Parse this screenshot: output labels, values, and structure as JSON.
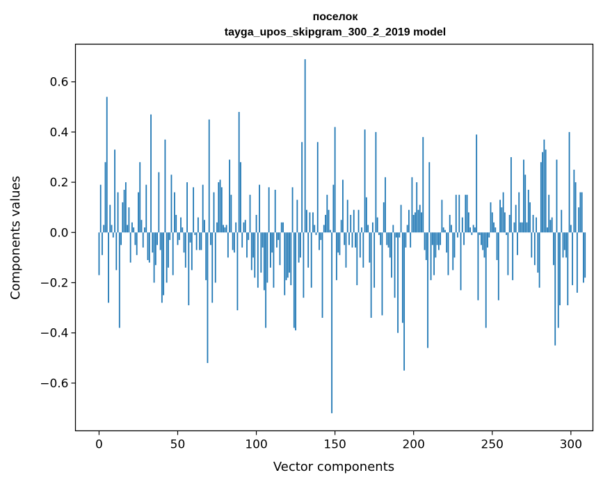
{
  "chart_data": {
    "type": "bar",
    "title": "поселок",
    "subtitle": "tayga_upos_skipgram_300_2_2019 model",
    "xlabel": "Vector components",
    "ylabel": "Components values",
    "xlim": [
      -15,
      314
    ],
    "ylim": [
      -0.79,
      0.75
    ],
    "xticks": [
      0,
      50,
      100,
      150,
      200,
      250,
      300
    ],
    "yticks": [
      -0.6,
      -0.4,
      -0.2,
      0.0,
      0.2,
      0.4,
      0.6
    ],
    "xtick_labels": [
      "0",
      "50",
      "100",
      "150",
      "200",
      "250",
      "300"
    ],
    "ytick_labels": [
      "−0.6",
      "−0.4",
      "−0.2",
      "0.0",
      "0.2",
      "0.4",
      "0.6"
    ],
    "bar_color": "#1f77b4",
    "grid": false,
    "values": [
      -0.17,
      0.19,
      -0.09,
      0.03,
      0.28,
      0.54,
      -0.28,
      0.11,
      0.03,
      -0.02,
      0.33,
      -0.15,
      0.16,
      -0.38,
      -0.05,
      0.12,
      0.17,
      0.2,
      0.03,
      0.1,
      -0.12,
      0.04,
      0.02,
      -0.05,
      -0.09,
      0.16,
      0.28,
      0.05,
      -0.06,
      0.02,
      0.19,
      -0.11,
      -0.12,
      0.47,
      -0.08,
      -0.2,
      -0.13,
      -0.05,
      0.24,
      -0.07,
      -0.28,
      -0.25,
      0.37,
      -0.2,
      -0.14,
      -0.03,
      0.23,
      -0.17,
      0.16,
      0.07,
      -0.05,
      -0.03,
      0.06,
      0.02,
      -0.08,
      -0.14,
      0.2,
      -0.29,
      -0.04,
      -0.15,
      0.18,
      -0.01,
      -0.07,
      0.06,
      -0.07,
      -0.07,
      0.19,
      0.05,
      -0.19,
      -0.52,
      0.45,
      -0.05,
      -0.28,
      0.16,
      -0.2,
      0.04,
      0.2,
      0.21,
      0.18,
      0.03,
      0.02,
      0.03,
      -0.1,
      0.29,
      0.15,
      -0.07,
      -0.08,
      0.04,
      -0.31,
      0.48,
      0.28,
      -0.06,
      0.04,
      0.05,
      -0.1,
      -0.03,
      0.15,
      -0.15,
      -0.1,
      -0.18,
      0.07,
      -0.22,
      0.19,
      -0.16,
      -0.06,
      -0.23,
      -0.38,
      -0.2,
      0.18,
      -0.14,
      -0.08,
      -0.22,
      0.17,
      -0.06,
      -0.03,
      -0.13,
      0.04,
      0.04,
      -0.25,
      -0.19,
      -0.18,
      -0.16,
      -0.21,
      0.18,
      -0.38,
      -0.39,
      0.13,
      -0.12,
      -0.1,
      0.36,
      -0.26,
      0.69,
      0.09,
      -0.14,
      0.08,
      -0.22,
      0.08,
      0.03,
      -0.01,
      0.36,
      -0.07,
      -0.03,
      -0.34,
      0.03,
      0.07,
      0.15,
      0.09,
      0.01,
      -0.72,
      0.19,
      0.42,
      -0.19,
      -0.08,
      -0.09,
      0.05,
      0.21,
      -0.05,
      -0.14,
      0.13,
      -0.05,
      0.07,
      -0.06,
      0.09,
      -0.06,
      -0.21,
      0.09,
      -0.1,
      0.02,
      -0.14,
      0.41,
      0.14,
      0.03,
      -0.12,
      -0.34,
      0.04,
      -0.22,
      0.4,
      0.06,
      -0.01,
      -0.05,
      -0.33,
      0.12,
      0.22,
      -0.05,
      -0.06,
      -0.1,
      -0.18,
      0.03,
      -0.26,
      -0.02,
      -0.4,
      -0.02,
      0.11,
      -0.36,
      -0.55,
      -0.06,
      0.03,
      0.09,
      -0.06,
      0.22,
      0.07,
      0.08,
      0.2,
      0.09,
      0.11,
      0.08,
      0.38,
      -0.07,
      -0.11,
      -0.46,
      0.28,
      -0.19,
      -0.05,
      -0.17,
      -0.1,
      -0.05,
      -0.07,
      -0.05,
      0.13,
      0.02,
      0.01,
      -0.08,
      -0.17,
      0.07,
      0.03,
      -0.15,
      -0.1,
      0.15,
      -0.02,
      0.15,
      -0.23,
      0.06,
      -0.05,
      0.15,
      0.15,
      0.08,
      0.02,
      -0.01,
      0.03,
      0.02,
      0.39,
      -0.27,
      -0.01,
      -0.05,
      -0.07,
      -0.1,
      -0.38,
      -0.06,
      -0.02,
      0.12,
      0.08,
      0.04,
      0.02,
      -0.11,
      -0.27,
      0.13,
      0.1,
      0.16,
      0.08,
      -0.01,
      -0.17,
      0.07,
      0.3,
      -0.19,
      0.04,
      0.11,
      -0.09,
      0.16,
      0.04,
      0.04,
      0.29,
      0.23,
      0.04,
      0.17,
      0.12,
      -0.1,
      0.07,
      -0.13,
      0.06,
      -0.16,
      -0.22,
      0.28,
      0.32,
      0.37,
      0.33,
      0.02,
      0.15,
      0.05,
      0.06,
      -0.13,
      -0.45,
      0.29,
      -0.38,
      -0.29,
      0.09,
      -0.1,
      -0.07,
      -0.1,
      -0.29,
      0.4,
      0.03,
      -0.21,
      0.25,
      0.2,
      -0.24,
      0.1,
      0.16,
      0.16,
      -0.2,
      -0.18
    ]
  }
}
